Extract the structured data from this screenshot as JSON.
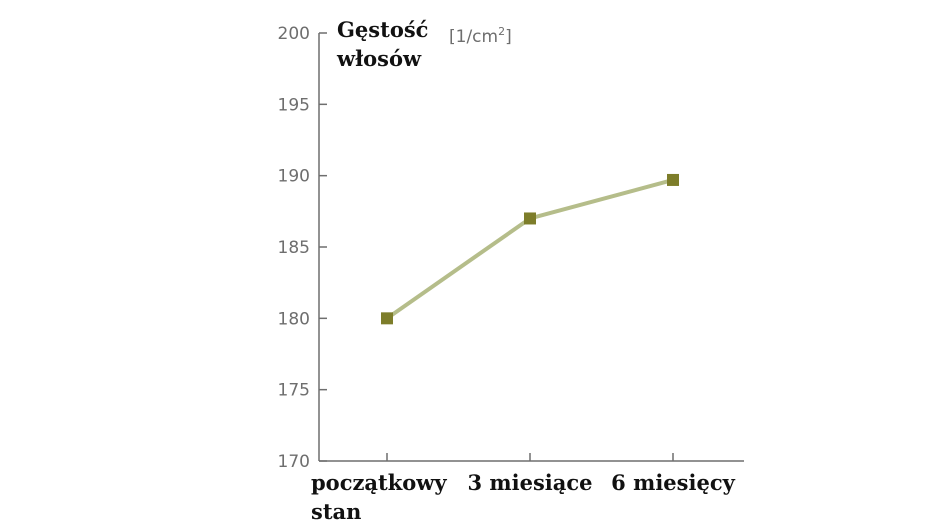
{
  "chart_data": {
    "type": "line",
    "ylabel_lines": [
      "Gęstość",
      "włosów"
    ],
    "unit": {
      "text": "[1/cm",
      "sup": "2",
      "close": "]"
    },
    "categories": [
      [
        "początkowy",
        "stan"
      ],
      [
        "3 miesiące"
      ],
      [
        "6 miesięcy"
      ]
    ],
    "series": [
      {
        "values": [
          180,
          187,
          189.7
        ]
      }
    ],
    "ylim": [
      170,
      200
    ],
    "yticks": [
      170,
      175,
      180,
      185,
      190,
      195,
      200
    ],
    "grid": false,
    "colors": {
      "line": "#b5bd8a",
      "marker": "#7d7d2a",
      "axis": "#6e6e6e"
    }
  }
}
